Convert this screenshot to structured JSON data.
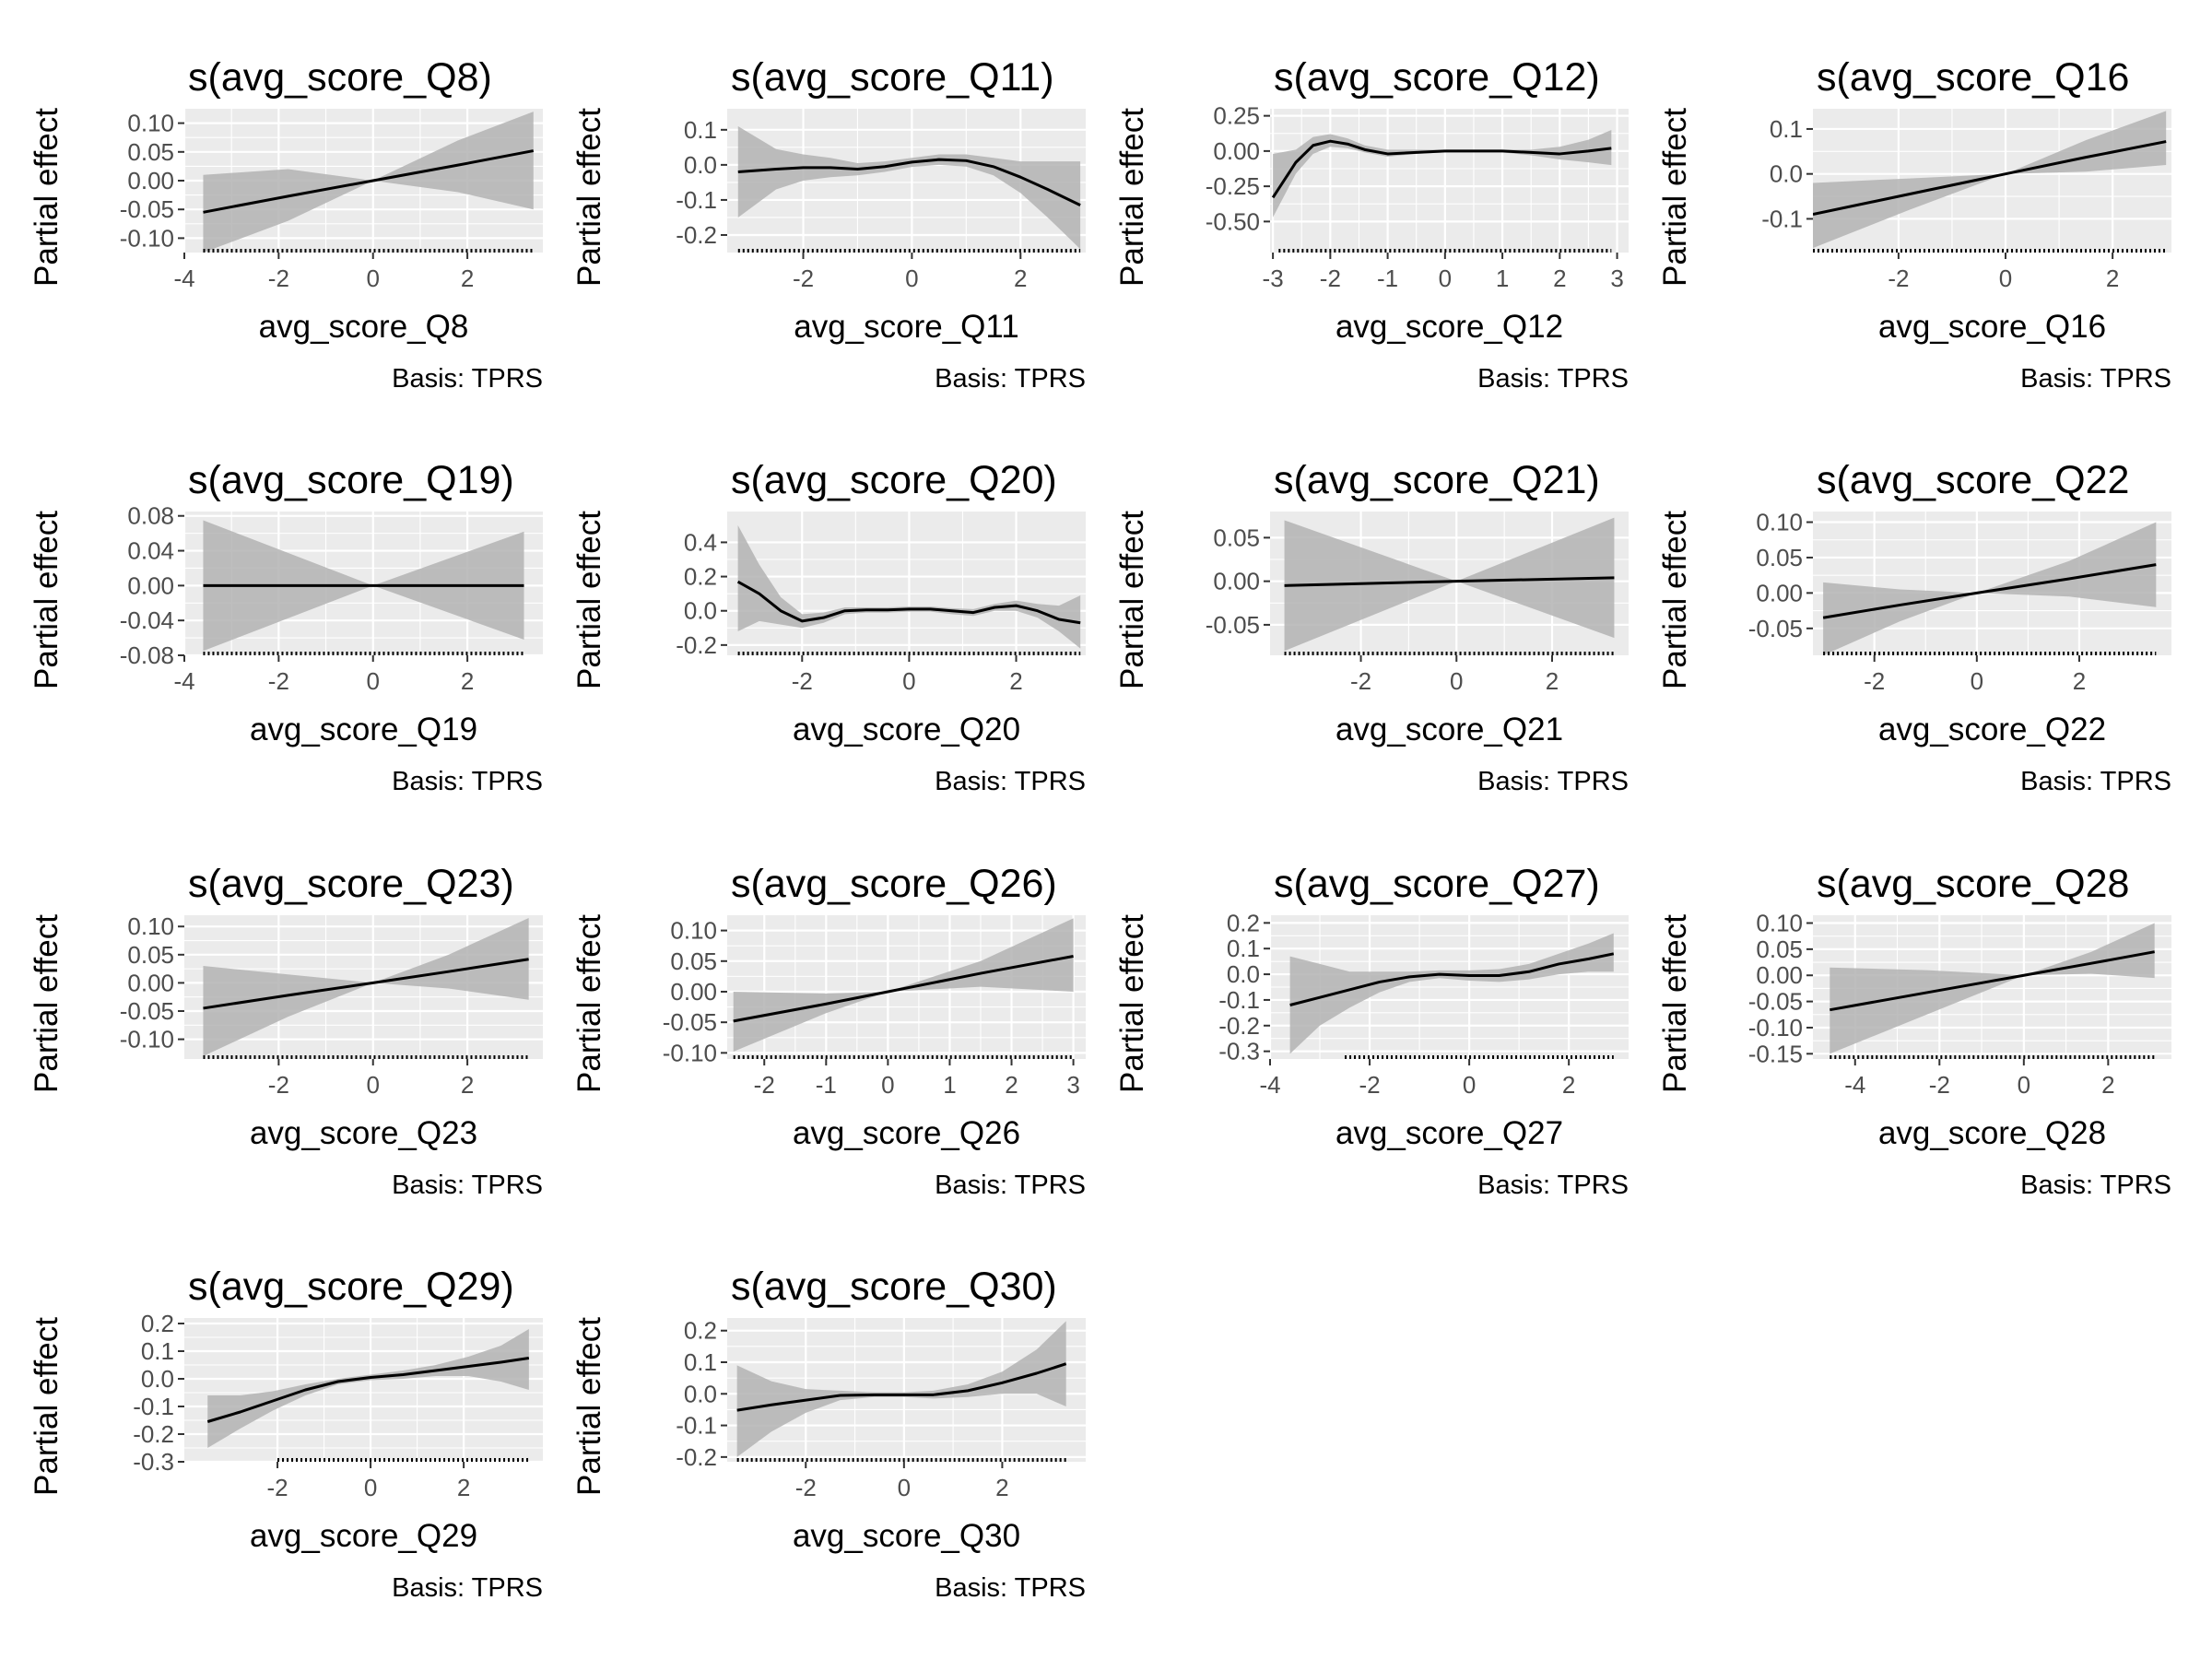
{
  "figure": {
    "ylabel": "Partial effect",
    "caption": "Basis: TPRS"
  },
  "colors": {
    "panel_bg": "#ebebeb",
    "grid": "#ffffff",
    "ribbon": "#b3b3b3",
    "line": "#000000",
    "tick_text": "#4d4d4d",
    "rug": "#000000"
  },
  "chart_data": [
    {
      "type": "line",
      "title": "s(avg_score_Q8)",
      "xlabel": "avg_score_Q8",
      "caption": "Basis: TPRS",
      "xlim": [
        -4,
        3.6
      ],
      "ylim": [
        -0.125,
        0.125
      ],
      "xticks": [
        -4,
        -2,
        0,
        2
      ],
      "yticks": [
        0.1,
        0.05,
        0.0,
        -0.05,
        -0.1
      ],
      "ytick_labels": [
        "0.10",
        "0.05",
        "0.00",
        "-0.05",
        "-0.10"
      ],
      "x": [
        -3.6,
        -1.8,
        0,
        1.8,
        3.4
      ],
      "y": [
        -0.055,
        -0.027,
        0,
        0.027,
        0.052
      ],
      "lower": [
        -0.125,
        -0.07,
        0,
        -0.02,
        -0.05
      ],
      "upper": [
        0.01,
        0.02,
        0,
        0.07,
        0.12
      ],
      "rug": [
        -3.6,
        3.4
      ]
    },
    {
      "type": "line",
      "title": "s(avg_score_Q11)",
      "xlabel": "avg_score_Q11",
      "caption": "Basis: TPRS",
      "xlim": [
        -3.4,
        3.2
      ],
      "ylim": [
        -0.25,
        0.16
      ],
      "xticks": [
        -2,
        0,
        2
      ],
      "yticks": [
        0.1,
        0.0,
        -0.1,
        -0.2
      ],
      "ytick_labels": [
        "0.1",
        "0.0",
        "-0.1",
        "-0.2"
      ],
      "x": [
        -3.2,
        -2.5,
        -2,
        -1.5,
        -1,
        -0.5,
        0,
        0.5,
        1,
        1.5,
        2,
        2.5,
        3.1
      ],
      "y": [
        -0.02,
        -0.012,
        -0.008,
        -0.008,
        -0.012,
        -0.005,
        0.008,
        0.015,
        0.012,
        -0.005,
        -0.035,
        -0.07,
        -0.115
      ],
      "lower": [
        -0.15,
        -0.07,
        -0.045,
        -0.035,
        -0.03,
        -0.02,
        -0.006,
        0.0,
        -0.005,
        -0.03,
        -0.08,
        -0.15,
        -0.24
      ],
      "upper": [
        0.11,
        0.045,
        0.03,
        0.02,
        0.005,
        0.01,
        0.02,
        0.03,
        0.03,
        0.02,
        0.01,
        0.01,
        0.01
      ],
      "rug": [
        -3.2,
        3.1
      ]
    },
    {
      "type": "line",
      "title": "s(avg_score_Q12)",
      "xlabel": "avg_score_Q12",
      "caption": "Basis: TPRS",
      "xlim": [
        -3.05,
        3.2
      ],
      "ylim": [
        -0.72,
        0.3
      ],
      "xticks": [
        -3,
        -2,
        -1,
        0,
        1,
        2,
        3
      ],
      "yticks": [
        0.25,
        0.0,
        -0.25,
        -0.5
      ],
      "ytick_labels": [
        "0.25",
        "0.00",
        "-0.25",
        "-0.50"
      ],
      "x": [
        -3,
        -2.6,
        -2.3,
        -2,
        -1.7,
        -1.4,
        -1,
        -0.5,
        0,
        0.5,
        1,
        1.5,
        2,
        2.5,
        2.9
      ],
      "y": [
        -0.33,
        -0.08,
        0.04,
        0.07,
        0.05,
        0.01,
        -0.02,
        -0.01,
        0.0,
        0.0,
        0.0,
        -0.01,
        -0.02,
        0.0,
        0.02
      ],
      "lower": [
        -0.47,
        -0.16,
        -0.02,
        0.03,
        0.02,
        -0.01,
        -0.04,
        -0.02,
        -0.01,
        -0.01,
        -0.01,
        -0.03,
        -0.06,
        -0.08,
        -0.1
      ],
      "upper": [
        -0.02,
        0.01,
        0.1,
        0.12,
        0.09,
        0.04,
        0.01,
        0.01,
        0.01,
        0.01,
        0.01,
        0.01,
        0.03,
        0.08,
        0.15
      ],
      "rug": [
        -2.9,
        2.9
      ]
    },
    {
      "type": "line",
      "title": "s(avg_score_Q16",
      "xlabel": "avg_score_Q16",
      "caption": "Basis: TPRS",
      "xlim": [
        -3.6,
        3.1
      ],
      "ylim": [
        -0.175,
        0.145
      ],
      "xticks": [
        -2,
        0,
        2
      ],
      "yticks": [
        0.1,
        0.0,
        -0.1
      ],
      "ytick_labels": [
        "0.1",
        "0.0",
        "-0.1"
      ],
      "x": [
        -3.6,
        -1.8,
        0,
        1.5,
        3
      ],
      "y": [
        -0.09,
        -0.045,
        0,
        0.037,
        0.072
      ],
      "lower": [
        -0.165,
        -0.08,
        0,
        0.005,
        0.02
      ],
      "upper": [
        -0.02,
        -0.01,
        0,
        0.075,
        0.14
      ],
      "rug": [
        -3.6,
        3
      ]
    },
    {
      "type": "line",
      "title": "s(avg_score_Q19)",
      "xlabel": "avg_score_Q19",
      "caption": "Basis: TPRS",
      "xlim": [
        -4,
        3.6
      ],
      "ylim": [
        -0.08,
        0.085
      ],
      "xticks": [
        -4,
        -2,
        0,
        2
      ],
      "yticks": [
        0.08,
        0.04,
        0.0,
        -0.04,
        -0.08
      ],
      "ytick_labels": [
        "0.08",
        "0.04",
        "0.00",
        "-0.04",
        "-0.08"
      ],
      "x": [
        -3.6,
        0,
        3.2
      ],
      "y": [
        0,
        0,
        0
      ],
      "lower": [
        -0.075,
        0,
        -0.062
      ],
      "upper": [
        0.075,
        0,
        0.062
      ],
      "rug": [
        -3.6,
        3.2
      ]
    },
    {
      "type": "line",
      "title": "s(avg_score_Q20)",
      "xlabel": "avg_score_Q20",
      "caption": "Basis: TPRS",
      "xlim": [
        -3.4,
        3.3
      ],
      "ylim": [
        -0.26,
        0.58
      ],
      "xticks": [
        -2,
        0,
        2
      ],
      "yticks": [
        0.4,
        0.2,
        0.0,
        -0.2
      ],
      "ytick_labels": [
        "0.4",
        "0.2",
        "0.0",
        "-0.2"
      ],
      "x": [
        -3.2,
        -2.8,
        -2.4,
        -2,
        -1.6,
        -1.2,
        -0.8,
        -0.4,
        0,
        0.4,
        0.8,
        1.2,
        1.6,
        2,
        2.4,
        2.8,
        3.2
      ],
      "y": [
        0.17,
        0.1,
        0.0,
        -0.06,
        -0.04,
        0.0,
        0.005,
        0.005,
        0.01,
        0.01,
        0.0,
        -0.01,
        0.02,
        0.03,
        0.0,
        -0.05,
        -0.07
      ],
      "lower": [
        -0.12,
        -0.06,
        -0.08,
        -0.1,
        -0.07,
        -0.02,
        -0.01,
        -0.01,
        -0.005,
        -0.005,
        -0.02,
        -0.03,
        0.0,
        0.0,
        -0.04,
        -0.12,
        -0.22
      ],
      "upper": [
        0.5,
        0.27,
        0.08,
        -0.02,
        -0.01,
        0.02,
        0.02,
        0.02,
        0.025,
        0.025,
        0.015,
        0.01,
        0.04,
        0.06,
        0.04,
        0.03,
        0.09
      ],
      "rug": [
        -3.2,
        3.2
      ]
    },
    {
      "type": "line",
      "title": "s(avg_score_Q21)",
      "xlabel": "avg_score_Q21",
      "caption": "Basis: TPRS",
      "xlim": [
        -3.9,
        3.6
      ],
      "ylim": [
        -0.085,
        0.08
      ],
      "xticks": [
        -2,
        0,
        2
      ],
      "yticks": [
        0.05,
        0.0,
        -0.05
      ],
      "ytick_labels": [
        "0.05",
        "0.00",
        "-0.05"
      ],
      "x": [
        -3.6,
        0,
        3.3
      ],
      "y": [
        -0.005,
        0,
        0.004
      ],
      "lower": [
        -0.08,
        0,
        -0.065
      ],
      "upper": [
        0.07,
        0,
        0.073
      ],
      "rug": [
        -3.6,
        3.3
      ]
    },
    {
      "type": "line",
      "title": "s(avg_score_Q22",
      "xlabel": "avg_score_Q22",
      "caption": "Basis: TPRS",
      "xlim": [
        -3.2,
        3.8
      ],
      "ylim": [
        -0.088,
        0.115
      ],
      "xticks": [
        -2,
        0,
        2
      ],
      "yticks": [
        0.1,
        0.05,
        0.0,
        -0.05
      ],
      "ytick_labels": [
        "0.10",
        "0.05",
        "0.00",
        "-0.05"
      ],
      "x": [
        -3,
        -1.5,
        0,
        1.8,
        3.5
      ],
      "y": [
        -0.035,
        -0.017,
        0,
        0.02,
        0.04
      ],
      "lower": [
        -0.088,
        -0.04,
        0,
        -0.005,
        -0.02
      ],
      "upper": [
        0.015,
        0.005,
        0,
        0.045,
        0.1
      ],
      "rug": [
        -3,
        3.5
      ]
    },
    {
      "type": "line",
      "title": "s(avg_score_Q23)",
      "xlabel": "avg_score_Q23",
      "caption": "Basis: TPRS",
      "xlim": [
        -4,
        3.6
      ],
      "ylim": [
        -0.135,
        0.12
      ],
      "xticks": [
        -2,
        0,
        2
      ],
      "yticks": [
        0.1,
        0.05,
        0.0,
        -0.05,
        -0.1
      ],
      "ytick_labels": [
        "0.10",
        "0.05",
        "0.00",
        "-0.05",
        "-0.10"
      ],
      "x": [
        -3.6,
        -1.8,
        0,
        1.6,
        3.3
      ],
      "y": [
        -0.045,
        -0.022,
        0,
        0.02,
        0.042
      ],
      "lower": [
        -0.13,
        -0.06,
        0,
        -0.01,
        -0.03
      ],
      "upper": [
        0.03,
        0.015,
        0,
        0.05,
        0.115
      ],
      "rug": [
        -3.6,
        3.3
      ]
    },
    {
      "type": "line",
      "title": "s(avg_score_Q26)",
      "xlabel": "avg_score_Q26",
      "caption": "Basis: TPRS",
      "xlim": [
        -2.6,
        3.2
      ],
      "ylim": [
        -0.11,
        0.125
      ],
      "xticks": [
        -2,
        -1,
        0,
        1,
        2,
        3
      ],
      "yticks": [
        0.1,
        0.05,
        0.0,
        -0.05,
        -0.1
      ],
      "ytick_labels": [
        "0.10",
        "0.05",
        "0.00",
        "-0.05",
        "-0.10"
      ],
      "x": [
        -2.5,
        -1,
        0,
        1.5,
        3
      ],
      "y": [
        -0.048,
        -0.02,
        0,
        0.03,
        0.058
      ],
      "lower": [
        -0.098,
        -0.035,
        0,
        0.008,
        0.0
      ],
      "upper": [
        0.0,
        -0.003,
        0,
        0.05,
        0.12
      ],
      "rug": [
        -2.5,
        3
      ]
    },
    {
      "type": "line",
      "title": "s(avg_score_Q27)",
      "xlabel": "avg_score_Q27",
      "caption": "Basis: TPRS",
      "xlim": [
        -4,
        3.2
      ],
      "ylim": [
        -0.33,
        0.23
      ],
      "xticks": [
        -4,
        -2,
        0,
        2
      ],
      "yticks": [
        0.2,
        0.1,
        0.0,
        -0.1,
        -0.2,
        -0.3
      ],
      "ytick_labels": [
        "0.2",
        "0.1",
        "0.0",
        "-0.1",
        "-0.2",
        "-0.3"
      ],
      "x": [
        -3.6,
        -3,
        -2.4,
        -1.8,
        -1.2,
        -0.6,
        0,
        0.6,
        1.2,
        1.8,
        2.4,
        2.9
      ],
      "y": [
        -0.12,
        -0.09,
        -0.06,
        -0.03,
        -0.01,
        0.0,
        -0.005,
        -0.005,
        0.01,
        0.04,
        0.06,
        0.08
      ],
      "lower": [
        -0.31,
        -0.2,
        -0.13,
        -0.07,
        -0.03,
        -0.015,
        -0.025,
        -0.03,
        -0.02,
        0.0,
        0.01,
        0.01
      ],
      "upper": [
        0.07,
        0.04,
        0.01,
        0.01,
        0.01,
        0.015,
        0.015,
        0.02,
        0.04,
        0.08,
        0.12,
        0.16
      ],
      "rug": [
        -2.5,
        2.9
      ]
    },
    {
      "type": "line",
      "title": "s(avg_score_Q28",
      "xlabel": "avg_score_Q28",
      "caption": "Basis: TPRS",
      "xlim": [
        -5,
        3.5
      ],
      "ylim": [
        -0.16,
        0.115
      ],
      "xticks": [
        -4,
        -2,
        0,
        2
      ],
      "yticks": [
        0.1,
        0.05,
        0.0,
        -0.05,
        -0.1,
        -0.15
      ],
      "ytick_labels": [
        "0.10",
        "0.05",
        "0.00",
        "-0.05",
        "-0.10",
        "-0.15"
      ],
      "x": [
        -4.6,
        -2.3,
        0,
        1.6,
        3.1
      ],
      "y": [
        -0.066,
        -0.033,
        0,
        0.023,
        0.045
      ],
      "lower": [
        -0.15,
        -0.075,
        0,
        0.003,
        -0.005
      ],
      "upper": [
        0.015,
        0.01,
        0,
        0.045,
        0.1
      ],
      "rug": [
        -4.6,
        3.1
      ]
    },
    {
      "type": "line",
      "title": "s(avg_score_Q29)",
      "xlabel": "avg_score_Q29",
      "caption": "Basis: TPRS",
      "xlim": [
        -4,
        3.7
      ],
      "ylim": [
        -0.3,
        0.22
      ],
      "xticks": [
        -2,
        0,
        2
      ],
      "yticks": [
        0.2,
        0.1,
        0.0,
        -0.1,
        -0.2,
        -0.3
      ],
      "ytick_labels": [
        "0.2",
        "0.1",
        "0.0",
        "-0.1",
        "-0.2",
        "-0.3"
      ],
      "x": [
        -3.5,
        -2.8,
        -2.1,
        -1.4,
        -0.7,
        0,
        0.7,
        1.4,
        2.1,
        2.8,
        3.4
      ],
      "y": [
        -0.155,
        -0.12,
        -0.08,
        -0.04,
        -0.01,
        0.005,
        0.015,
        0.03,
        0.045,
        0.06,
        0.075
      ],
      "lower": [
        -0.25,
        -0.18,
        -0.115,
        -0.06,
        -0.02,
        -0.005,
        0.0,
        0.01,
        0.01,
        -0.01,
        -0.04
      ],
      "upper": [
        -0.06,
        -0.06,
        -0.045,
        -0.02,
        0.0,
        0.015,
        0.03,
        0.05,
        0.08,
        0.12,
        0.18
      ],
      "rug": [
        -2,
        3.4
      ]
    },
    {
      "type": "line",
      "title": "s(avg_score_Q30)",
      "xlabel": "avg_score_Q30",
      "caption": "Basis: TPRS",
      "xlim": [
        -3.6,
        3.7
      ],
      "ylim": [
        -0.215,
        0.24
      ],
      "xticks": [
        -2,
        0,
        2
      ],
      "yticks": [
        0.2,
        0.1,
        0.0,
        -0.1,
        -0.2
      ],
      "ytick_labels": [
        "0.2",
        "0.1",
        "0.0",
        "-0.1",
        "-0.2"
      ],
      "x": [
        -3.4,
        -2.7,
        -2,
        -1.3,
        -0.6,
        0,
        0.6,
        1.3,
        2,
        2.7,
        3.3
      ],
      "y": [
        -0.052,
        -0.035,
        -0.02,
        -0.005,
        -0.003,
        -0.003,
        -0.003,
        0.01,
        0.035,
        0.065,
        0.095
      ],
      "lower": [
        -0.2,
        -0.12,
        -0.06,
        -0.02,
        -0.01,
        -0.01,
        -0.015,
        -0.01,
        0.0,
        0.0,
        -0.04
      ],
      "upper": [
        0.09,
        0.04,
        0.015,
        0.01,
        0.005,
        0.005,
        0.01,
        0.03,
        0.07,
        0.14,
        0.23
      ],
      "rug": [
        -3.4,
        3.3
      ]
    }
  ]
}
